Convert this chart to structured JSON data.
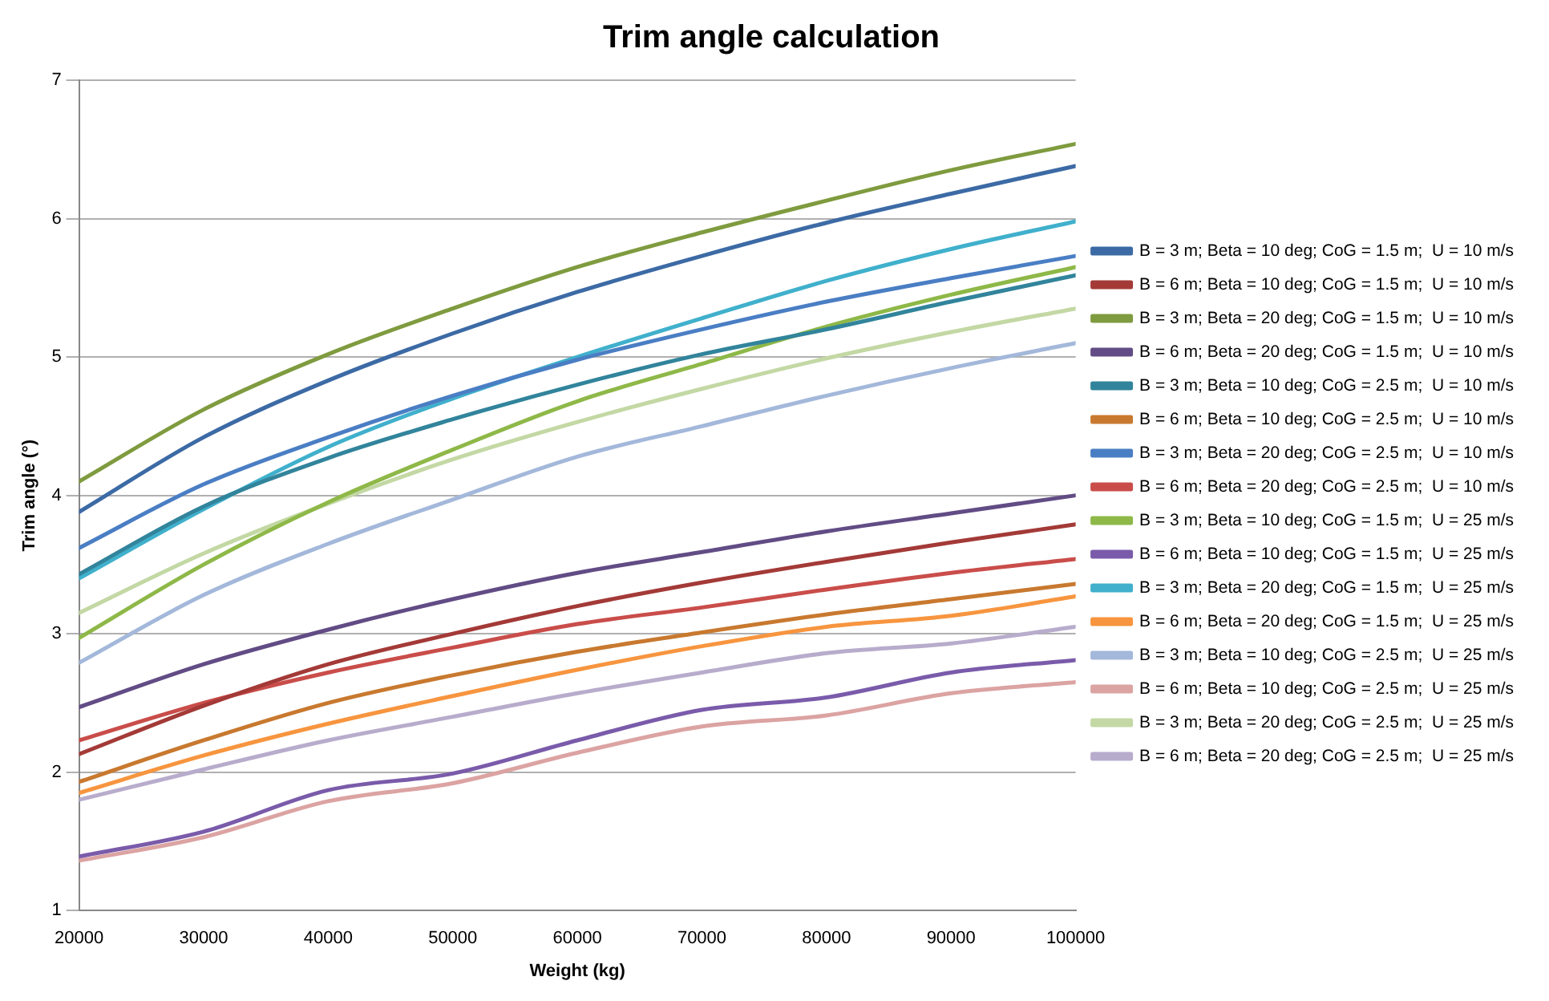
{
  "chart_data": {
    "type": "line",
    "title": "Trim angle calculation",
    "xlabel": "Weight (kg)",
    "ylabel": "Trim angle (°)",
    "x": [
      20000,
      30000,
      40000,
      50000,
      60000,
      70000,
      80000,
      90000,
      100000
    ],
    "xlim": [
      20000,
      100000
    ],
    "xticks": [
      20000,
      30000,
      40000,
      50000,
      60000,
      70000,
      80000,
      90000,
      100000
    ],
    "ylim": [
      1,
      7
    ],
    "yticks": [
      1,
      2,
      3,
      4,
      5,
      6,
      7
    ],
    "grid": "y",
    "legend": "right",
    "marker": "none",
    "line_style": "solid",
    "series": [
      {
        "name": "B = 3 m; Beta = 10 deg; CoG = 1.5 m;  U = 10 m/s",
        "color": "#3c6aa5",
        "values": [
          3.88,
          4.42,
          4.83,
          5.17,
          5.47,
          5.73,
          5.97,
          6.18,
          6.38
        ]
      },
      {
        "name": "B = 6 m; Beta = 10 deg; CoG = 1.5 m;  U = 10 m/s",
        "color": "#a33a37",
        "values": [
          2.13,
          2.48,
          2.78,
          3.0,
          3.2,
          3.37,
          3.52,
          3.66,
          3.79
        ]
      },
      {
        "name": "B = 3 m; Beta = 20 deg; CoG = 1.5 m;  U = 10 m/s",
        "color": "#7f9b3f",
        "values": [
          4.1,
          4.62,
          5.02,
          5.35,
          5.65,
          5.9,
          6.13,
          6.35,
          6.54
        ]
      },
      {
        "name": "B = 6 m; Beta = 20 deg; CoG = 1.5 m;  U = 10 m/s",
        "color": "#624c85",
        "values": [
          2.47,
          2.78,
          3.03,
          3.25,
          3.44,
          3.59,
          3.74,
          3.87,
          4.0
        ]
      },
      {
        "name": "B = 3 m; Beta = 10 deg; CoG = 2.5 m;  U = 10 m/s",
        "color": "#31849b",
        "values": [
          3.43,
          3.92,
          4.27,
          4.55,
          4.8,
          5.02,
          5.2,
          5.4,
          5.59
        ]
      },
      {
        "name": "B = 6 m; Beta = 10 deg; CoG = 2.5 m;  U = 10 m/s",
        "color": "#c8792f",
        "values": [
          1.93,
          2.23,
          2.5,
          2.7,
          2.87,
          3.01,
          3.14,
          3.25,
          3.36
        ]
      },
      {
        "name": "B = 3 m; Beta = 20 deg; CoG = 2.5 m;  U = 10 m/s",
        "color": "#4a7ec4",
        "values": [
          3.62,
          4.08,
          4.42,
          4.72,
          4.98,
          5.2,
          5.4,
          5.57,
          5.73
        ]
      },
      {
        "name": "B = 6 m; Beta = 20 deg; CoG = 2.5 m;  U = 10 m/s",
        "color": "#c94d4a",
        "values": [
          2.23,
          2.5,
          2.72,
          2.9,
          3.07,
          3.19,
          3.32,
          3.44,
          3.54
        ]
      },
      {
        "name": "B = 3 m; Beta = 10 deg; CoG = 1.5 m;  U = 25 m/s",
        "color": "#8eb848",
        "values": [
          2.97,
          3.5,
          3.95,
          4.33,
          4.68,
          4.95,
          5.22,
          5.45,
          5.65
        ]
      },
      {
        "name": "B = 6 m; Beta = 10 deg; CoG = 1.5 m;  U = 25 m/s",
        "color": "#7a5baa",
        "values": [
          1.39,
          1.57,
          1.87,
          1.99,
          2.23,
          2.45,
          2.54,
          2.72,
          2.81
        ]
      },
      {
        "name": "B = 3 m; Beta = 20 deg; CoG = 1.5 m;  U = 25 m/s",
        "color": "#40b0cc",
        "values": [
          3.4,
          3.9,
          4.35,
          4.7,
          5.0,
          5.28,
          5.55,
          5.78,
          5.98
        ]
      },
      {
        "name": "B = 6 m; Beta = 20 deg; CoG = 1.5 m;  U = 25 m/s",
        "color": "#f7953f",
        "values": [
          1.85,
          2.12,
          2.35,
          2.55,
          2.74,
          2.91,
          3.05,
          3.13,
          3.27
        ]
      },
      {
        "name": "B = 3 m; Beta = 10 deg; CoG = 2.5 m;  U = 25 m/s",
        "color": "#a3b8da",
        "values": [
          2.79,
          3.28,
          3.65,
          3.97,
          4.28,
          4.5,
          4.72,
          4.92,
          5.1
        ]
      },
      {
        "name": "B = 6 m; Beta = 10 deg; CoG = 2.5 m;  U = 25 m/s",
        "color": "#dba3a2",
        "values": [
          1.36,
          1.53,
          1.79,
          1.92,
          2.14,
          2.33,
          2.41,
          2.57,
          2.65
        ]
      },
      {
        "name": "B = 3 m; Beta = 20 deg; CoG = 2.5 m;  U = 25 m/s",
        "color": "#c3d8a4",
        "values": [
          3.15,
          3.58,
          3.94,
          4.26,
          4.53,
          4.77,
          4.99,
          5.18,
          5.35
        ]
      },
      {
        "name": "B = 6 m; Beta = 20 deg; CoG = 2.5 m;  U = 25 m/s",
        "color": "#b8accc",
        "values": [
          1.8,
          2.02,
          2.23,
          2.4,
          2.57,
          2.72,
          2.86,
          2.93,
          3.05
        ]
      }
    ]
  }
}
